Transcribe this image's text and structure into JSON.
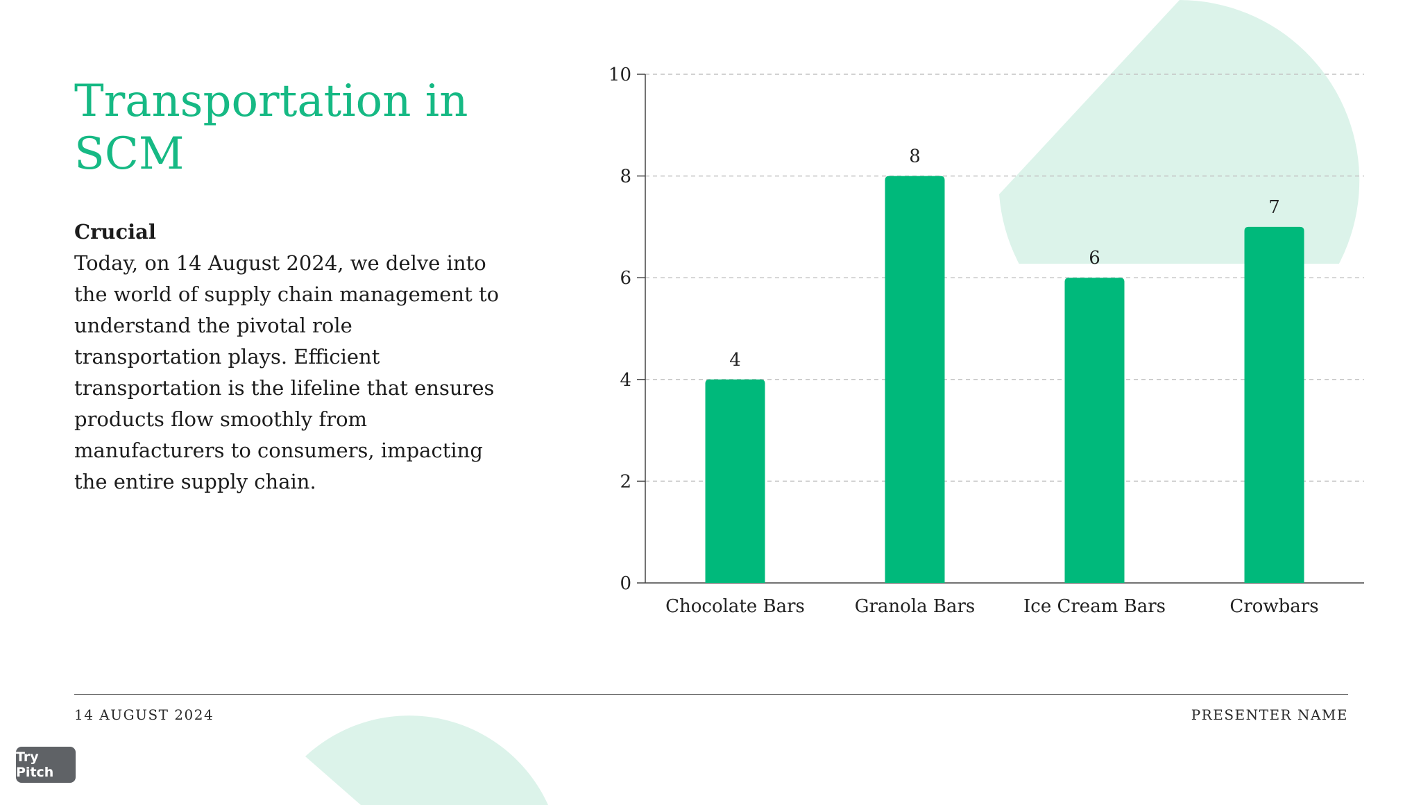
{
  "slide": {
    "title": "Transportation in SCM",
    "body_heading": "Crucial",
    "body_text": "Today, on 14 August 2024, we delve into the world of supply chain management to understand the pivotal role transportation plays. Efficient transportation is the lifeline that ensures products flow smoothly from manufacturers to consumers, impacting the entire supply chain."
  },
  "footer": {
    "date": "14 AUGUST 2024",
    "presenter": "PRESENTER NAME"
  },
  "badge": {
    "label": "Try Pitch"
  },
  "colors": {
    "accent": "#16b984",
    "bar": "#00b97b",
    "blob": "#dcf3ea"
  },
  "chart_data": {
    "type": "bar",
    "categories": [
      "Chocolate Bars",
      "Granola Bars",
      "Ice Cream Bars",
      "Crowbars"
    ],
    "values": [
      4,
      8,
      6,
      7
    ],
    "ylim": [
      0,
      10
    ],
    "yticks": [
      0,
      2,
      4,
      6,
      8,
      10
    ],
    "grid": true,
    "data_labels": true,
    "title": "",
    "xlabel": "",
    "ylabel": ""
  }
}
